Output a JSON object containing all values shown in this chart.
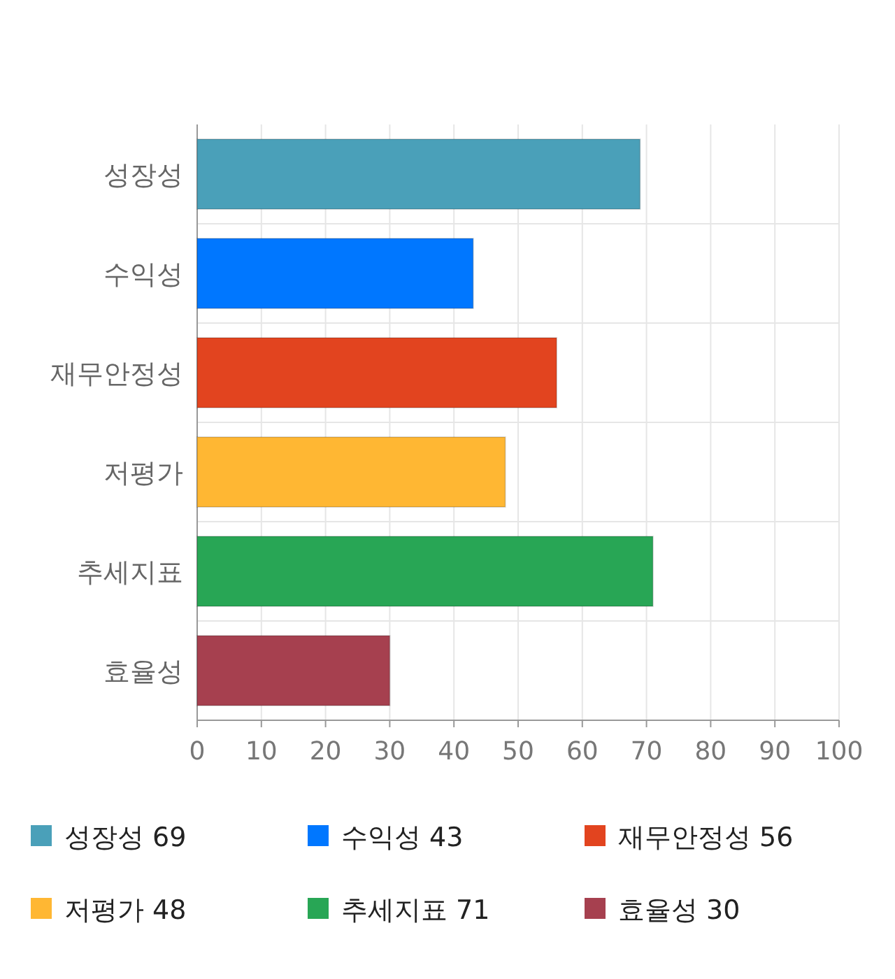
{
  "chart_data": {
    "type": "bar",
    "orientation": "horizontal",
    "stacked": true,
    "categories": [
      "성장성",
      "수익성",
      "재무안정성",
      "저평가",
      "추세지표",
      "효율성"
    ],
    "series": [
      {
        "name": "성장성 69",
        "color": "#4aa0b9",
        "values": [
          69,
          null,
          null,
          null,
          null,
          null
        ]
      },
      {
        "name": "수익성 43",
        "color": "#0077ff",
        "values": [
          null,
          43,
          null,
          null,
          null,
          null
        ]
      },
      {
        "name": "재무안정성 56",
        "color": "#e2441f",
        "values": [
          null,
          null,
          56,
          null,
          null,
          null
        ]
      },
      {
        "name": "저평가 48",
        "color": "#ffb733",
        "values": [
          null,
          null,
          null,
          48,
          null,
          null
        ]
      },
      {
        "name": "추세지표 71",
        "color": "#28a655",
        "values": [
          null,
          null,
          null,
          null,
          71,
          null
        ]
      },
      {
        "name": "효율성 30",
        "color": "#a6404f",
        "values": [
          null,
          null,
          null,
          null,
          null,
          30
        ]
      }
    ],
    "xlim": [
      0,
      100
    ],
    "xticks": [
      0,
      10,
      20,
      30,
      40,
      50,
      60,
      70,
      80,
      90,
      100
    ],
    "grid": true,
    "legend": "bottom"
  }
}
